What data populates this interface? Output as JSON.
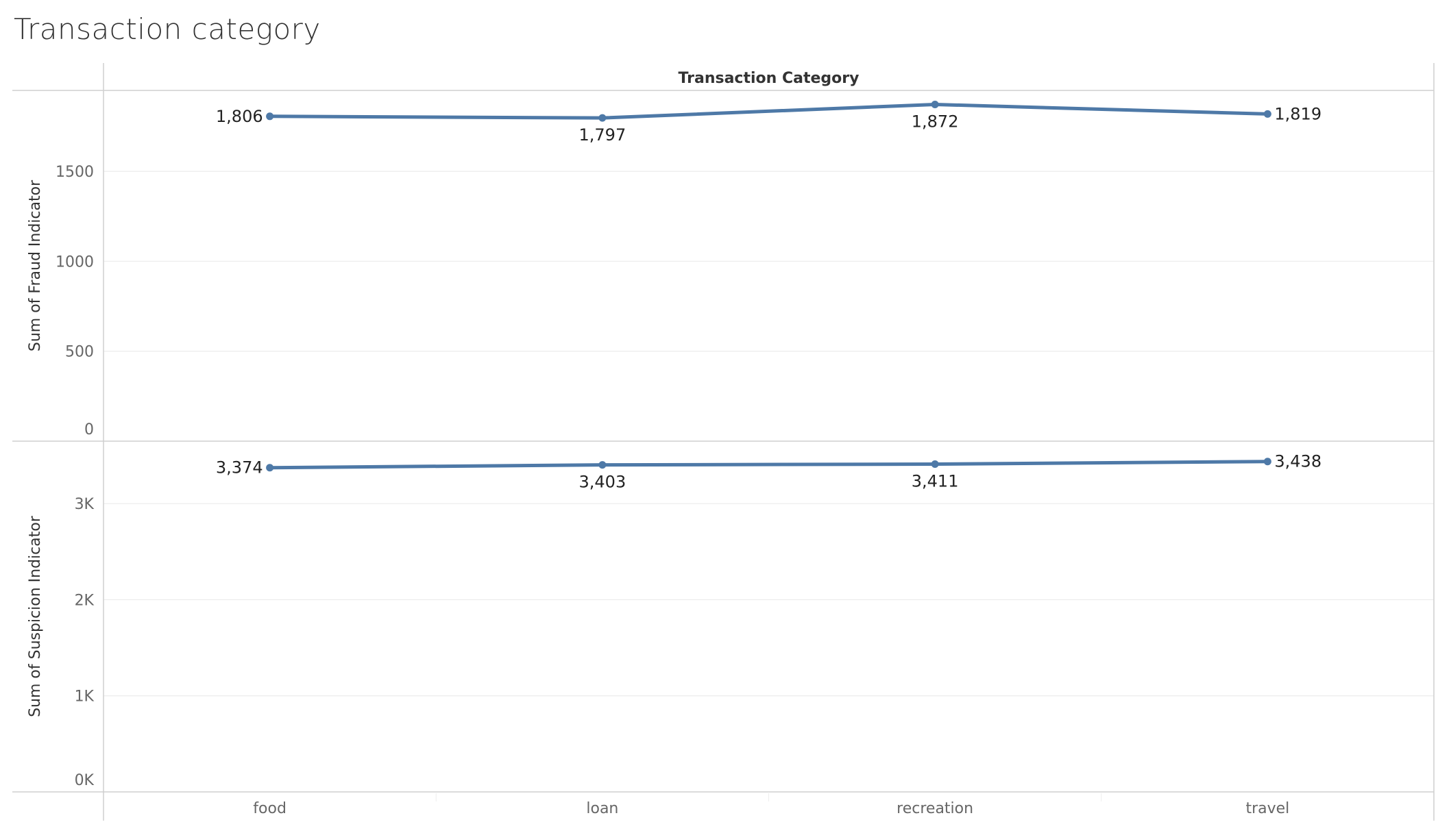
{
  "page": {
    "title": "Transaction category"
  },
  "chart_data": {
    "type": "line",
    "header": "Transaction Category",
    "categories": [
      "food",
      "loan",
      "recreation",
      "travel"
    ],
    "panels": [
      {
        "ylabel": "Sum of Fraud Indicator",
        "ylim": [
          0,
          1950
        ],
        "yticks": [
          0,
          500,
          1000,
          1500
        ],
        "ytick_labels": [
          "0",
          "500",
          "1000",
          "1500"
        ],
        "values": [
          1806,
          1797,
          1872,
          1819
        ],
        "value_labels": [
          "1,806",
          "1,797",
          "1,872",
          "1,819"
        ],
        "label_positions": [
          "left",
          "below",
          "below",
          "right"
        ],
        "color": "#4e79a7"
      },
      {
        "ylabel": "Sum of Suspicion Indicator",
        "ylim": [
          0,
          3650
        ],
        "yticks": [
          0,
          1000,
          2000,
          3000
        ],
        "ytick_labels": [
          "0K",
          "1K",
          "2K",
          "3K"
        ],
        "values": [
          3374,
          3403,
          3411,
          3438
        ],
        "value_labels": [
          "3,374",
          "3,403",
          "3,411",
          "3,438"
        ],
        "label_positions": [
          "left",
          "below",
          "below",
          "right"
        ],
        "color": "#4e79a7"
      }
    ],
    "grid": true,
    "legend": "none"
  }
}
